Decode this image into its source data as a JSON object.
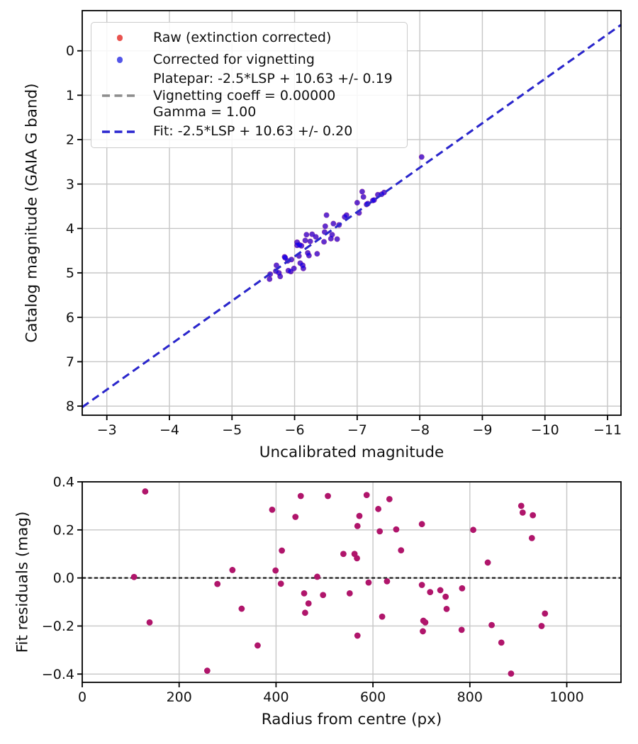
{
  "figure": {
    "background": "#ffffff",
    "grid_color": "#c6c6c6",
    "spine_color": "#000000"
  },
  "chart_data": [
    {
      "type": "scatter",
      "title": "",
      "xlabel": "Uncalibrated magnitude",
      "ylabel": "Catalog magnitude (GAIA G band)",
      "xlim": [
        -2.607,
        -11.215
      ],
      "ylim": [
        -0.905,
        8.205
      ],
      "x_axis_inverted": true,
      "y_axis_inverted": true,
      "grid": true,
      "xticks": [
        {
          "v": -3,
          "label": "−3"
        },
        {
          "v": -4,
          "label": "−4"
        },
        {
          "v": -5,
          "label": "−5"
        },
        {
          "v": -6,
          "label": "−6"
        },
        {
          "v": -7,
          "label": "−7"
        },
        {
          "v": -8,
          "label": "−8"
        },
        {
          "v": -9,
          "label": "−9"
        },
        {
          "v": -10,
          "label": "−10"
        },
        {
          "v": -11,
          "label": "−11"
        }
      ],
      "yticks": [
        {
          "v": 0,
          "label": "0"
        },
        {
          "v": 1,
          "label": "1"
        },
        {
          "v": 2,
          "label": "2"
        },
        {
          "v": 3,
          "label": "3"
        },
        {
          "v": 4,
          "label": "4"
        },
        {
          "v": 5,
          "label": "5"
        },
        {
          "v": 6,
          "label": "6"
        },
        {
          "v": 7,
          "label": "7"
        },
        {
          "v": 8,
          "label": "8"
        }
      ],
      "legend": {
        "position": "upper left",
        "entries": [
          {
            "marker": "dot",
            "color": "#e9534f",
            "label": "Raw (extinction corrected)"
          },
          {
            "marker": "dot",
            "color": "#5356e9",
            "label": "Corrected for vignetting"
          },
          {
            "marker": "dash",
            "color": "#8c8c8c",
            "lines": [
              "Platepar: -2.5*LSP + 10.63 +/- 0.19",
              "Vignetting coeff = 0.00000",
              "Gamma = 1.00"
            ]
          },
          {
            "marker": "dash",
            "color": "#2a26cf",
            "label": "Fit: -2.5*LSP + 10.63 +/- 0.20"
          }
        ]
      },
      "points": [
        [
          -8.03,
          2.39
        ],
        [
          -7.43,
          3.19
        ],
        [
          -7.39,
          3.23
        ],
        [
          -7.33,
          3.24
        ],
        [
          -7.27,
          3.36
        ],
        [
          -7.25,
          3.37
        ],
        [
          -7.17,
          3.44
        ],
        [
          -7.15,
          3.46
        ],
        [
          -7.1,
          3.29
        ],
        [
          -7.08,
          3.17
        ],
        [
          -7.0,
          3.42
        ],
        [
          -7.03,
          3.65
        ],
        [
          -6.83,
          3.7
        ],
        [
          -6.8,
          3.74
        ],
        [
          -6.51,
          3.7
        ],
        [
          -6.71,
          3.92
        ],
        [
          -6.62,
          3.89
        ],
        [
          -6.49,
          3.95
        ],
        [
          -6.48,
          4.08
        ],
        [
          -6.6,
          4.14
        ],
        [
          -6.68,
          4.24
        ],
        [
          -6.58,
          4.23
        ],
        [
          -6.47,
          4.3
        ],
        [
          -6.34,
          4.19
        ],
        [
          -6.28,
          4.13
        ],
        [
          -6.25,
          4.29
        ],
        [
          -6.19,
          4.14
        ],
        [
          -6.17,
          4.27
        ],
        [
          -6.11,
          4.39
        ],
        [
          -6.08,
          4.37
        ],
        [
          -6.04,
          4.31
        ],
        [
          -6.04,
          4.38
        ],
        [
          -6.36,
          4.57
        ],
        [
          -6.23,
          4.61
        ],
        [
          -6.21,
          4.55
        ],
        [
          -6.07,
          4.62
        ],
        [
          -6.13,
          4.83
        ],
        [
          -6.09,
          4.78
        ],
        [
          -6.14,
          4.9
        ],
        [
          -5.99,
          4.9
        ],
        [
          -5.95,
          4.7
        ],
        [
          -5.89,
          4.73
        ],
        [
          -5.85,
          4.66
        ],
        [
          -5.84,
          4.64
        ],
        [
          -5.9,
          4.95
        ],
        [
          -5.94,
          4.97
        ],
        [
          -5.75,
          5.0
        ],
        [
          -5.77,
          5.08
        ],
        [
          -5.71,
          4.83
        ],
        [
          -5.7,
          4.96
        ],
        [
          -5.61,
          5.03
        ],
        [
          -5.6,
          5.14
        ]
      ],
      "series": [
        {
          "name": "Raw (extinction corrected)",
          "color": "rgba(255,0,0,0.5)",
          "r": 4.0,
          "points": "shared"
        },
        {
          "name": "Corrected for vignetting",
          "color": "rgba(0,0,255,0.62)",
          "r": 3.8,
          "points": "shared"
        }
      ],
      "lines": [
        {
          "name": "Platepar: -2.5*LSP + 10.63 +/- 0.19",
          "slope": 1,
          "intercept": 10.63,
          "color": "#8c8c8c",
          "width": 3,
          "dash": "11 6.5",
          "z": "over"
        },
        {
          "name": "Fit: -2.5*LSP + 10.63 +/- 0.20",
          "slope": 1,
          "intercept": 10.63,
          "color": "#2a26cf",
          "width": 3,
          "dash": "11 6.5",
          "z": "over"
        }
      ]
    },
    {
      "type": "scatter",
      "title": "",
      "xlabel": "Radius from centre (px)",
      "ylabel": "Fit residuals (mag)",
      "xlim": [
        0,
        1111.9
      ],
      "ylim": [
        0.4,
        -0.4345
      ],
      "grid": true,
      "xticks": [
        {
          "v": 0,
          "label": "0"
        },
        {
          "v": 200,
          "label": "200"
        },
        {
          "v": 400,
          "label": "400"
        },
        {
          "v": 600,
          "label": "600"
        },
        {
          "v": 800,
          "label": "800"
        },
        {
          "v": 1000,
          "label": "1000"
        }
      ],
      "yticks": [
        {
          "v": 0.4,
          "label": "0.4"
        },
        {
          "v": 0.2,
          "label": "0.2"
        },
        {
          "v": 0.0,
          "label": "0.0"
        },
        {
          "v": -0.2,
          "label": "−0.2"
        },
        {
          "v": -0.4,
          "label": "−0.4"
        }
      ],
      "series": [
        {
          "name": "Fit residuals",
          "color": "#b0156b",
          "r": 4.4,
          "points": [
            [
              107,
              0.004
            ],
            [
              130,
              0.36
            ],
            [
              139,
              -0.185
            ],
            [
              258,
              -0.386
            ],
            [
              279,
              -0.025
            ],
            [
              310,
              0.033
            ],
            [
              329,
              -0.128
            ],
            [
              362,
              -0.281
            ],
            [
              392,
              0.284
            ],
            [
              399,
              0.031
            ],
            [
              410,
              -0.024
            ],
            [
              412,
              0.114
            ],
            [
              440,
              0.254
            ],
            [
              451,
              0.341
            ],
            [
              458,
              -0.064
            ],
            [
              460,
              -0.145
            ],
            [
              467,
              -0.106
            ],
            [
              485,
              0.005
            ],
            [
              497,
              -0.071
            ],
            [
              507,
              0.341
            ],
            [
              539,
              0.1
            ],
            [
              552,
              -0.064
            ],
            [
              562,
              0.1
            ],
            [
              567,
              0.082
            ],
            [
              568,
              0.216
            ],
            [
              568,
              -0.24
            ],
            [
              572,
              0.258
            ],
            [
              587,
              0.345
            ],
            [
              591,
              -0.019
            ],
            [
              611,
              0.287
            ],
            [
              614,
              0.194
            ],
            [
              619,
              -0.161
            ],
            [
              629,
              -0.014
            ],
            [
              634,
              0.328
            ],
            [
              648,
              0.202
            ],
            [
              658,
              0.115
            ],
            [
              701,
              0.224
            ],
            [
              701,
              -0.029
            ],
            [
              703,
              -0.222
            ],
            [
              704,
              -0.178
            ],
            [
              708,
              -0.185
            ],
            [
              718,
              -0.059
            ],
            [
              739,
              -0.051
            ],
            [
              750,
              -0.078
            ],
            [
              752,
              -0.129
            ],
            [
              783,
              -0.216
            ],
            [
              784,
              -0.043
            ],
            [
              807,
              0.2
            ],
            [
              837,
              0.064
            ],
            [
              845,
              -0.196
            ],
            [
              865,
              -0.269
            ],
            [
              885,
              -0.398
            ],
            [
              906,
              0.3
            ],
            [
              909,
              0.272
            ],
            [
              928,
              0.166
            ],
            [
              930,
              0.261
            ],
            [
              948,
              -0.2
            ],
            [
              955,
              -0.148
            ]
          ]
        }
      ],
      "lines": [
        {
          "name": "zero residual line",
          "y": 0,
          "color": "#1a1a1a",
          "width": 2.2,
          "dash": "5 3.5",
          "z": "under"
        }
      ]
    }
  ]
}
